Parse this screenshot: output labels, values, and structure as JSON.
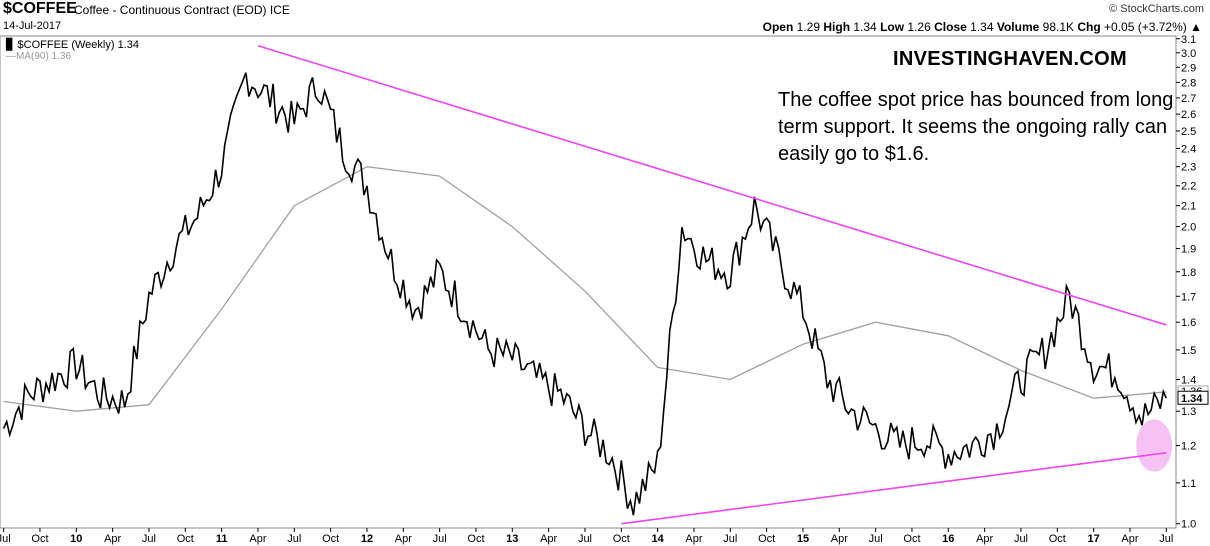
{
  "header": {
    "symbol": "$COFFEE",
    "description": "Coffee - Continuous Contract (EOD)  ICE",
    "date": "14-Jul-2017",
    "credit": "© StockCharts.com",
    "quote": {
      "open_label": "Open",
      "open": "1.29",
      "high_label": "High",
      "high": "1.34",
      "low_label": "Low",
      "low": "1.26",
      "close_label": "Close",
      "close": "1.34",
      "volume_label": "Volume",
      "volume": "98.1K",
      "chg_label": "Chg",
      "chg": "+0.05 (+3.72%)"
    }
  },
  "legend": {
    "main": "$COFFEE (Weekly) 1.34",
    "ma": "MA(90) 1.36"
  },
  "annotation": {
    "brand": "INVESTINGHAVEN.COM",
    "text": "The coffee spot price has bounced from long term support. It seems the ongoing rally can easily go to $1.6."
  },
  "colors": {
    "price": "#000000",
    "ma": "#a0a0a0",
    "trendline": "#ee44ee",
    "highlight": "#f4b3f0"
  },
  "chart_data": {
    "type": "line",
    "title": "$COFFEE (Weekly)",
    "y_scale": "log",
    "ylim": [
      0.99,
      3.12
    ],
    "y_ticks": [
      "3.1",
      "3.0",
      "2.9",
      "2.8",
      "2.7",
      "2.6",
      "2.5",
      "2.4",
      "2.3",
      "2.2",
      "2.1",
      "2.0",
      "1.9",
      "1.8",
      "1.7",
      "1.6",
      "1.5",
      "1.4",
      "1.3",
      "1.2",
      "1.1",
      "1.0"
    ],
    "x_ticks": [
      "Jul",
      "Oct",
      "10",
      "Apr",
      "Jul",
      "Oct",
      "11",
      "Apr",
      "Jul",
      "Oct",
      "12",
      "Apr",
      "Jul",
      "Oct",
      "13",
      "Apr",
      "Jul",
      "Oct",
      "14",
      "Apr",
      "Jul",
      "Oct",
      "15",
      "Apr",
      "Jul",
      "Oct",
      "16",
      "Apr",
      "Jul",
      "Oct",
      "17",
      "Apr",
      "Jul"
    ],
    "x_range": [
      "2009-07",
      "2017-07"
    ],
    "last_value": "1.34",
    "ma_last": "1.36",
    "series": [
      {
        "name": "$COFFEE (Weekly)",
        "x": [
          "2009-07",
          "2009-09",
          "2009-11",
          "2010-01",
          "2010-03",
          "2010-05",
          "2010-07",
          "2010-09",
          "2010-11",
          "2011-01",
          "2011-03",
          "2011-05",
          "2011-07",
          "2011-09",
          "2011-11",
          "2012-01",
          "2012-03",
          "2012-05",
          "2012-07",
          "2012-09",
          "2012-11",
          "2013-01",
          "2013-03",
          "2013-05",
          "2013-07",
          "2013-09",
          "2013-11",
          "2014-01",
          "2014-03",
          "2014-05",
          "2014-07",
          "2014-09",
          "2014-11",
          "2015-01",
          "2015-03",
          "2015-05",
          "2015-07",
          "2015-09",
          "2015-11",
          "2016-01",
          "2016-03",
          "2016-05",
          "2016-07",
          "2016-09",
          "2016-11",
          "2017-01",
          "2017-03",
          "2017-05",
          "2017-07"
        ],
        "values": [
          1.25,
          1.35,
          1.4,
          1.45,
          1.35,
          1.33,
          1.7,
          1.9,
          2.05,
          2.3,
          2.85,
          2.7,
          2.55,
          2.8,
          2.4,
          2.2,
          1.85,
          1.65,
          1.8,
          1.65,
          1.5,
          1.47,
          1.4,
          1.35,
          1.25,
          1.18,
          1.05,
          1.15,
          2.0,
          1.85,
          1.8,
          2.1,
          1.85,
          1.65,
          1.4,
          1.3,
          1.25,
          1.2,
          1.22,
          1.18,
          1.2,
          1.25,
          1.4,
          1.5,
          1.7,
          1.45,
          1.42,
          1.28,
          1.34
        ]
      },
      {
        "name": "MA(90)",
        "x": [
          "2009-07",
          "2010-01",
          "2010-07",
          "2011-01",
          "2011-07",
          "2012-01",
          "2012-07",
          "2013-01",
          "2013-07",
          "2014-01",
          "2014-07",
          "2015-01",
          "2015-07",
          "2016-01",
          "2016-07",
          "2017-01",
          "2017-07"
        ],
        "values": [
          1.33,
          1.3,
          1.32,
          1.65,
          2.1,
          2.3,
          2.25,
          2.0,
          1.72,
          1.44,
          1.4,
          1.52,
          1.6,
          1.55,
          1.43,
          1.34,
          1.36
        ]
      }
    ],
    "trendlines": [
      {
        "name": "resistance",
        "x": [
          "2011-04",
          "2017-07"
        ],
        "values": [
          3.05,
          1.59
        ]
      },
      {
        "name": "support",
        "x": [
          "2013-10",
          "2017-07"
        ],
        "values": [
          1.0,
          1.18
        ]
      }
    ],
    "highlight_point": {
      "x": "2017-06",
      "value": 1.2
    }
  }
}
